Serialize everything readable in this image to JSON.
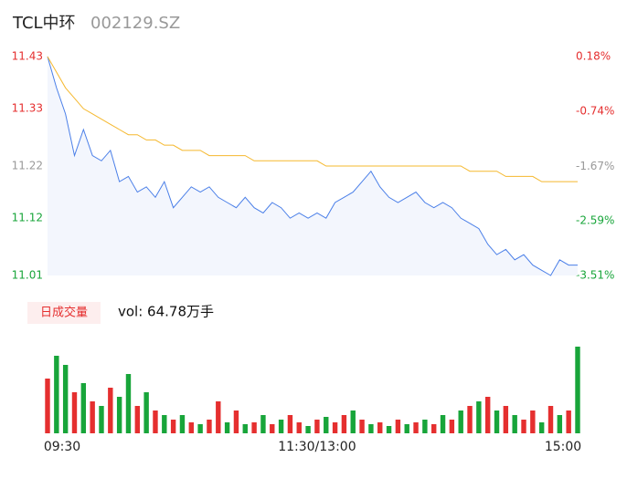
{
  "header": {
    "name": "TCL中环",
    "code": "002129.SZ"
  },
  "chart_data": [
    {
      "type": "line",
      "ylim": [
        11.01,
        11.43
      ],
      "yticks": [
        11.43,
        11.33,
        11.22,
        11.12,
        11.01
      ],
      "y2lim": [
        -3.51,
        0.18
      ],
      "y2ticks": [
        {
          "value": 0.18,
          "label": "0.18%"
        },
        {
          "value": -0.74,
          "label": "-0.74%"
        },
        {
          "value": -1.67,
          "label": "-1.67%"
        },
        {
          "value": -2.59,
          "label": "-2.59%"
        },
        {
          "value": -3.51,
          "label": "-3.51%"
        }
      ],
      "up_color": "#e52f2f",
      "flat_color": "#999999",
      "down_color": "#18a53a",
      "series": [
        {
          "color": "#4a7fe8",
          "values": [
            11.43,
            11.37,
            11.32,
            11.24,
            11.29,
            11.24,
            11.23,
            11.25,
            11.19,
            11.2,
            11.17,
            11.18,
            11.16,
            11.19,
            11.14,
            11.16,
            11.18,
            11.17,
            11.18,
            11.16,
            11.15,
            11.14,
            11.16,
            11.14,
            11.13,
            11.15,
            11.14,
            11.12,
            11.13,
            11.12,
            11.13,
            11.12,
            11.15,
            11.16,
            11.17,
            11.19,
            11.21,
            11.18,
            11.16,
            11.15,
            11.16,
            11.17,
            11.15,
            11.14,
            11.15,
            11.14,
            11.12,
            11.11,
            11.1,
            11.07,
            11.05,
            11.06,
            11.04,
            11.05,
            11.03,
            11.02,
            11.01,
            11.04,
            11.03,
            11.03
          ]
        },
        {
          "color": "#f5b82e",
          "values": [
            11.43,
            11.4,
            11.37,
            11.35,
            11.33,
            11.32,
            11.31,
            11.3,
            11.29,
            11.28,
            11.28,
            11.27,
            11.27,
            11.26,
            11.26,
            11.25,
            11.25,
            11.25,
            11.24,
            11.24,
            11.24,
            11.24,
            11.24,
            11.23,
            11.23,
            11.23,
            11.23,
            11.23,
            11.23,
            11.23,
            11.23,
            11.22,
            11.22,
            11.22,
            11.22,
            11.22,
            11.22,
            11.22,
            11.22,
            11.22,
            11.22,
            11.22,
            11.22,
            11.22,
            11.22,
            11.22,
            11.22,
            11.21,
            11.21,
            11.21,
            11.21,
            11.2,
            11.2,
            11.2,
            11.2,
            11.19,
            11.19,
            11.19,
            11.19,
            11.19
          ]
        }
      ]
    },
    {
      "type": "bar",
      "tag": "日成交量",
      "label": "vol: 64.78万手",
      "ylim": [
        0,
        100
      ],
      "categories": [
        "09:30",
        null,
        null,
        null,
        null,
        null,
        null,
        null,
        null,
        null,
        null,
        null,
        null,
        null,
        null,
        null,
        null,
        null,
        null,
        null,
        null,
        null,
        null,
        null,
        null,
        null,
        null,
        null,
        null,
        null,
        "11:30/13:00",
        null,
        null,
        null,
        null,
        null,
        null,
        null,
        null,
        null,
        null,
        null,
        null,
        null,
        null,
        null,
        null,
        null,
        null,
        null,
        null,
        null,
        null,
        null,
        null,
        null,
        null,
        null,
        null,
        "15:00"
      ],
      "values": [
        60,
        85,
        75,
        45,
        55,
        35,
        30,
        50,
        40,
        65,
        30,
        45,
        25,
        20,
        15,
        20,
        12,
        10,
        15,
        35,
        12,
        25,
        10,
        12,
        20,
        10,
        15,
        20,
        12,
        8,
        15,
        18,
        12,
        20,
        25,
        15,
        10,
        12,
        8,
        15,
        10,
        12,
        15,
        10,
        20,
        15,
        25,
        30,
        35,
        40,
        25,
        30,
        20,
        15,
        25,
        12,
        30,
        20,
        25,
        95
      ],
      "colors": [
        "#e52f2f",
        "#18a53a",
        "#18a53a",
        "#e52f2f",
        "#18a53a",
        "#e52f2f",
        "#18a53a",
        "#e52f2f",
        "#18a53a",
        "#18a53a",
        "#e52f2f",
        "#18a53a",
        "#e52f2f",
        "#18a53a",
        "#e52f2f",
        "#18a53a",
        "#e52f2f",
        "#18a53a",
        "#e52f2f",
        "#e52f2f",
        "#18a53a",
        "#e52f2f",
        "#18a53a",
        "#e52f2f",
        "#18a53a",
        "#e52f2f",
        "#18a53a",
        "#e52f2f",
        "#e52f2f",
        "#18a53a",
        "#e52f2f",
        "#18a53a",
        "#e52f2f",
        "#e52f2f",
        "#18a53a",
        "#e52f2f",
        "#18a53a",
        "#e52f2f",
        "#18a53a",
        "#e52f2f",
        "#18a53a",
        "#e52f2f",
        "#18a53a",
        "#e52f2f",
        "#18a53a",
        "#e52f2f",
        "#18a53a",
        "#e52f2f",
        "#18a53a",
        "#e52f2f",
        "#18a53a",
        "#e52f2f",
        "#18a53a",
        "#e52f2f",
        "#e52f2f",
        "#18a53a",
        "#e52f2f",
        "#18a53a",
        "#e52f2f",
        "#18a53a"
      ]
    }
  ]
}
